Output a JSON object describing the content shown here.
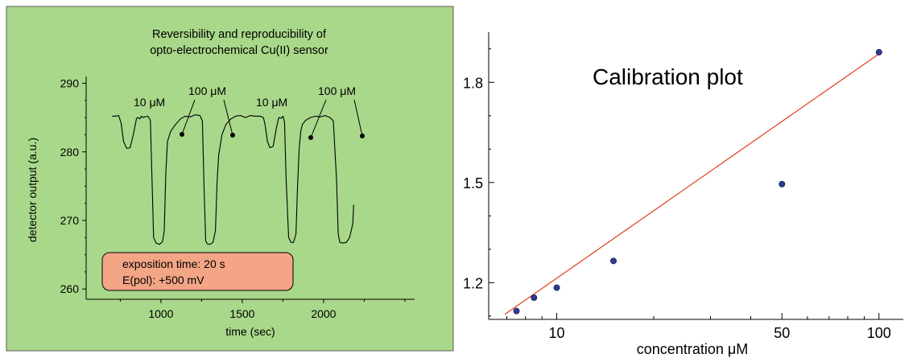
{
  "left_chart": {
    "title_line1": "Reversibility and reproducibility of",
    "title_line2": "opto-electrochemical Cu(II) sensor",
    "xlabel": "time (sec)",
    "ylabel": "detector output (a.u.)",
    "annotations": [
      "10 μM",
      "100 μM",
      "10 μM",
      "100 μM"
    ],
    "legend_line1": "exposition time: 20 s",
    "legend_line2": "E(pol): +500 mV",
    "background_color": "#a9d88a",
    "legend_box_color": "#f3a586"
  },
  "right_chart": {
    "title": "Calibration plot",
    "xlabel": "concentration μM",
    "point_color": "#2e3a8c",
    "fit_line_color": "#e0401a"
  },
  "chart_data": [
    {
      "type": "line",
      "title": "Reversibility and reproducibility of opto-electrochemical Cu(II) sensor",
      "xlabel": "time (sec)",
      "ylabel": "detector output (a.u.)",
      "x_ticks": [
        1000,
        1500,
        2000
      ],
      "y_ticks": [
        260,
        270,
        280,
        290
      ],
      "xlim": [
        540,
        2560
      ],
      "ylim": [
        258.5,
        291
      ],
      "grid": false,
      "series": [
        {
          "x": [
            700,
            720,
            740,
            755,
            770,
            790,
            810,
            830,
            850,
            860,
            870,
            880,
            890,
            900,
            920,
            935,
            945,
            955,
            970,
            990,
            1010,
            1020,
            1030,
            1040,
            1060,
            1090,
            1120,
            1150,
            1180,
            1210,
            1240,
            1255,
            1265,
            1275,
            1285,
            1300,
            1320,
            1335,
            1345,
            1355,
            1375,
            1400,
            1430,
            1460,
            1490,
            1520,
            1550,
            1580,
            1610,
            1630,
            1640,
            1655,
            1670,
            1690,
            1710,
            1725,
            1740,
            1750,
            1760,
            1770,
            1785,
            1800,
            1815,
            1830,
            1840,
            1850,
            1860,
            1870,
            1890,
            1920,
            1950,
            1980,
            2010,
            2040,
            2060,
            2080,
            2090,
            2100,
            2120,
            2140,
            2160,
            2170,
            2180,
            2185
          ],
          "y": [
            285.2,
            285.2,
            285.3,
            284.2,
            281.5,
            280.5,
            280.6,
            282.5,
            284.9,
            285.0,
            284.8,
            285.2,
            285.0,
            285.1,
            285.2,
            284.6,
            276.0,
            267.5,
            266.7,
            266.5,
            266.9,
            268.5,
            277.0,
            281.5,
            283.0,
            284.0,
            284.8,
            285.2,
            285.1,
            285.4,
            285.3,
            284.5,
            275.0,
            267.0,
            266.6,
            266.5,
            266.8,
            268.5,
            275.5,
            279.5,
            282.5,
            284.0,
            284.8,
            285.2,
            285.3,
            285.0,
            285.3,
            285.2,
            285.2,
            285.0,
            284.0,
            281.5,
            280.6,
            280.8,
            283.5,
            285.0,
            284.9,
            285.2,
            284.4,
            276.0,
            267.5,
            266.8,
            266.8,
            268.0,
            275.0,
            280.5,
            283.0,
            284.0,
            284.6,
            285.0,
            285.2,
            285.1,
            285.3,
            285.0,
            284.5,
            276.0,
            268.0,
            266.8,
            266.7,
            266.8,
            267.5,
            268.5,
            269.5,
            272.3
          ]
        }
      ]
    },
    {
      "type": "scatter",
      "title": "Calibration plot",
      "xlabel": "concentration μM",
      "ylabel": "",
      "x_scale": "log",
      "x_ticks": [
        10,
        50,
        100
      ],
      "y_ticks": [
        1.2,
        1.5,
        1.8
      ],
      "xlim": [
        6.15,
        119
      ],
      "ylim": [
        1.09,
        1.95
      ],
      "grid": false,
      "series": [
        {
          "x": [
            7.5,
            8.5,
            10,
            15,
            50,
            100
          ],
          "y": [
            1.115,
            1.155,
            1.185,
            1.265,
            1.495,
            1.89
          ]
        }
      ],
      "fit_line": {
        "x": [
          6.9,
          100
        ],
        "y": [
          1.105,
          1.885
        ]
      }
    }
  ]
}
